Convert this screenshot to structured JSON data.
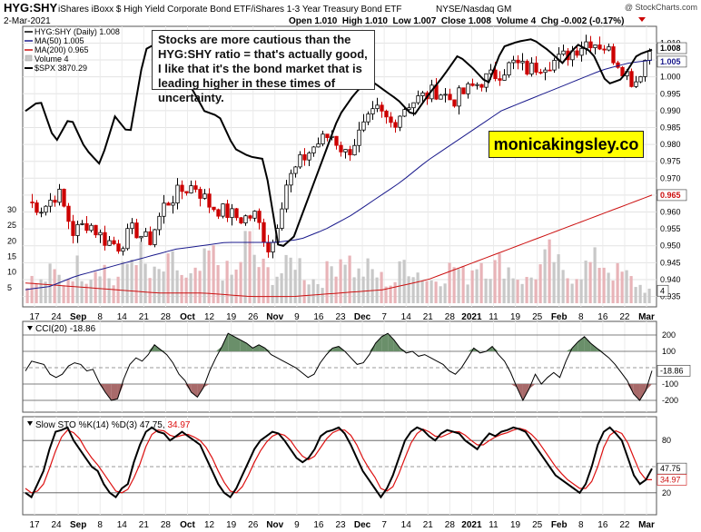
{
  "header": {
    "symbol": "HYG:SHY",
    "description": "iShares iBoxx $ High Yield Corporate Bond ETF/iShares 1-3 Year Treasury Bond ETF",
    "exchange": "NYSE/Nasdaq GM",
    "date": "2-Mar-2021",
    "ohlc_text": "Open 1.010  High 1.010  Low 1.007  Close 1.008  Volume 4  Chg -0.002 (-0.17%)",
    "copyright": "@ StockCharts.com"
  },
  "legend": {
    "main": "HYG:SHY (Daily) 1.008",
    "ma50": "MA(50) 1.005",
    "ma200": "MA(200) 0.965",
    "volume": "Volume 4",
    "spx": "$SPX 3870.29"
  },
  "annotation": {
    "text": "Stocks are more cautious than the HYG:SHY ratio = that's actually good, I like that it's the bond market that is leading higher in these times of uncertainty."
  },
  "brand": {
    "text": "monicakingsley.co"
  },
  "colors": {
    "up": "#000000",
    "down": "#cc0000",
    "ma50": "#1a1a8c",
    "ma200": "#cc1111",
    "vol_down": "#e8b4b8",
    "vol_up": "#c8c8c8",
    "cci_fill": "#6a8f6a",
    "cci_neg_fill": "#a86a6a",
    "sto_k": "#000000",
    "sto_d": "#dd1111"
  },
  "chart_data": [
    {
      "type": "candlestick",
      "title": "HYG:SHY (Daily)",
      "price_axis_ticks": [
        "0.935",
        "0.940",
        "0.945",
        "0.950",
        "0.955",
        "0.960",
        "0.965",
        "0.970",
        "0.975",
        "0.980",
        "0.985",
        "0.990",
        "0.995",
        "1.000",
        "1.005",
        "1.010"
      ],
      "ylim": [
        0.933,
        1.012
      ],
      "volume_axis_ticks": [
        "5",
        "10",
        "15",
        "20",
        "25",
        "30"
      ],
      "price_badges": {
        "close": "1.008",
        "ma50": "1.005",
        "ma200": "0.965",
        "volume": "4"
      },
      "x_labels": [
        "17",
        "24",
        "Sep",
        "8",
        "14",
        "21",
        "28",
        "Oct",
        "12",
        "19",
        "26",
        "Nov",
        "9",
        "16",
        "23",
        "Dec",
        "7",
        "14",
        "21",
        "28",
        "2021",
        "11",
        "19",
        "25",
        "Feb",
        "8",
        "16",
        "22",
        "Mar"
      ],
      "close_anchors": [
        0.963,
        0.961,
        0.966,
        0.954,
        0.957,
        0.952,
        0.95,
        0.955,
        0.951,
        0.962,
        0.966,
        0.968,
        0.962,
        0.96,
        0.958,
        0.959,
        0.948,
        0.968,
        0.975,
        0.98,
        0.983,
        0.977,
        0.984,
        0.99,
        0.986,
        0.992,
        0.994,
        0.996,
        0.993,
        0.996,
        0.999,
        1.001,
        1.004,
        1.002,
        1.004,
        1.005,
        1.008,
        1.011,
        1.009,
        1.004,
        0.998,
        1.008
      ],
      "ma50_anchors": [
        0.937,
        0.938,
        0.941,
        0.943,
        0.945,
        0.947,
        0.949,
        0.95,
        0.951,
        0.951,
        0.951,
        0.952,
        0.955,
        0.959,
        0.964,
        0.969,
        0.975,
        0.98,
        0.985,
        0.99,
        0.993,
        0.996,
        0.999,
        1.002,
        1.004,
        1.005
      ],
      "ma200_anchors": [
        0.939,
        0.938,
        0.937,
        0.936,
        0.936,
        0.935,
        0.935,
        0.936,
        0.937,
        0.94,
        0.945,
        0.95,
        0.955,
        0.96,
        0.965
      ],
      "volume_anchors": [
        8,
        6,
        10,
        7,
        12,
        9,
        14,
        6,
        11,
        18,
        8,
        10,
        13,
        7,
        9,
        16,
        11,
        8,
        21,
        12,
        9,
        10,
        15,
        8,
        7,
        12,
        17,
        9,
        11,
        8,
        6,
        14,
        10,
        7,
        9,
        12,
        8,
        15,
        11,
        13,
        9,
        7,
        11,
        16,
        8,
        10,
        12,
        14,
        10,
        9,
        6,
        4
      ],
      "spx_pct_anchors": [
        0.72,
        0.76,
        0.6,
        0.7,
        0.58,
        0.52,
        0.7,
        0.63,
        0.95,
        0.98,
        0.9,
        0.82,
        0.72,
        0.7,
        0.58,
        0.55,
        0.54,
        0.2,
        0.25,
        0.4,
        0.55,
        0.7,
        0.78,
        0.84,
        0.8,
        0.76,
        0.7,
        0.78,
        0.85,
        0.93,
        0.88,
        0.82,
        0.96,
        0.98,
        0.99,
        0.95,
        0.9,
        0.97,
        0.94,
        0.82,
        0.84,
        0.93,
        0.95
      ]
    },
    {
      "type": "line",
      "title": "CCI(20) -18.86",
      "ylim": [
        -250,
        250
      ],
      "ticks": [
        "200",
        "100",
        "-100",
        "-200"
      ],
      "last_value": "-18.86",
      "values": [
        -20,
        40,
        30,
        20,
        -40,
        -60,
        -40,
        10,
        30,
        20,
        -20,
        -10,
        -90,
        -150,
        -200,
        -190,
        -70,
        20,
        60,
        40,
        80,
        140,
        110,
        80,
        30,
        -40,
        -80,
        -150,
        -180,
        -120,
        -20,
        60,
        130,
        210,
        190,
        170,
        150,
        120,
        140,
        120,
        80,
        60,
        40,
        20,
        0,
        -30,
        -60,
        -40,
        30,
        80,
        120,
        130,
        100,
        60,
        20,
        30,
        80,
        150,
        190,
        210,
        170,
        120,
        90,
        100,
        70,
        80,
        60,
        40,
        20,
        -20,
        -40,
        0,
        60,
        120,
        90,
        100,
        130,
        80,
        40,
        -30,
        -120,
        -200,
        -130,
        -40,
        -100,
        -60,
        -30,
        -60,
        40,
        120,
        160,
        190,
        150,
        120,
        90,
        60,
        20,
        -30,
        -80,
        -160,
        -200,
        -140,
        -18.86
      ]
    },
    {
      "type": "line",
      "title": "Slow STO %K(14) %D(3) 47.75, 34.97",
      "ylim": [
        0,
        100
      ],
      "ticks": [
        "80",
        "50",
        "20"
      ],
      "last_k": "47.75",
      "last_d": "34.97",
      "k_values": [
        20,
        15,
        30,
        45,
        70,
        90,
        92,
        95,
        80,
        70,
        60,
        50,
        45,
        30,
        20,
        15,
        25,
        30,
        55,
        75,
        90,
        95,
        90,
        88,
        80,
        85,
        90,
        85,
        80,
        75,
        60,
        45,
        30,
        20,
        15,
        25,
        40,
        55,
        70,
        80,
        85,
        90,
        88,
        80,
        70,
        60,
        55,
        60,
        70,
        85,
        90,
        92,
        95,
        88,
        75,
        60,
        45,
        35,
        25,
        15,
        25,
        40,
        60,
        80,
        90,
        95,
        92,
        85,
        80,
        88,
        92,
        90,
        88,
        80,
        75,
        70,
        80,
        88,
        85,
        90,
        92,
        95,
        93,
        90,
        80,
        70,
        60,
        50,
        40,
        35,
        30,
        25,
        20,
        30,
        50,
        75,
        90,
        95,
        88,
        80,
        60,
        40,
        30,
        35,
        47.75
      ],
      "d_values": [
        25,
        20,
        22,
        30,
        48,
        68,
        84,
        92,
        89,
        82,
        70,
        60,
        52,
        42,
        32,
        22,
        20,
        24,
        37,
        53,
        73,
        87,
        92,
        91,
        86,
        84,
        86,
        87,
        84,
        80,
        72,
        60,
        45,
        32,
        22,
        20,
        27,
        40,
        55,
        68,
        78,
        85,
        88,
        86,
        80,
        70,
        62,
        58,
        62,
        72,
        82,
        89,
        92,
        92,
        86,
        75,
        60,
        48,
        38,
        25,
        22,
        27,
        42,
        60,
        77,
        88,
        93,
        90,
        85,
        84,
        87,
        90,
        90,
        86,
        80,
        75,
        75,
        80,
        84,
        87,
        89,
        92,
        94,
        92,
        87,
        80,
        70,
        60,
        50,
        42,
        35,
        30,
        25,
        25,
        33,
        50,
        72,
        86,
        91,
        88,
        77,
        60,
        44,
        35,
        34.97
      ]
    }
  ]
}
